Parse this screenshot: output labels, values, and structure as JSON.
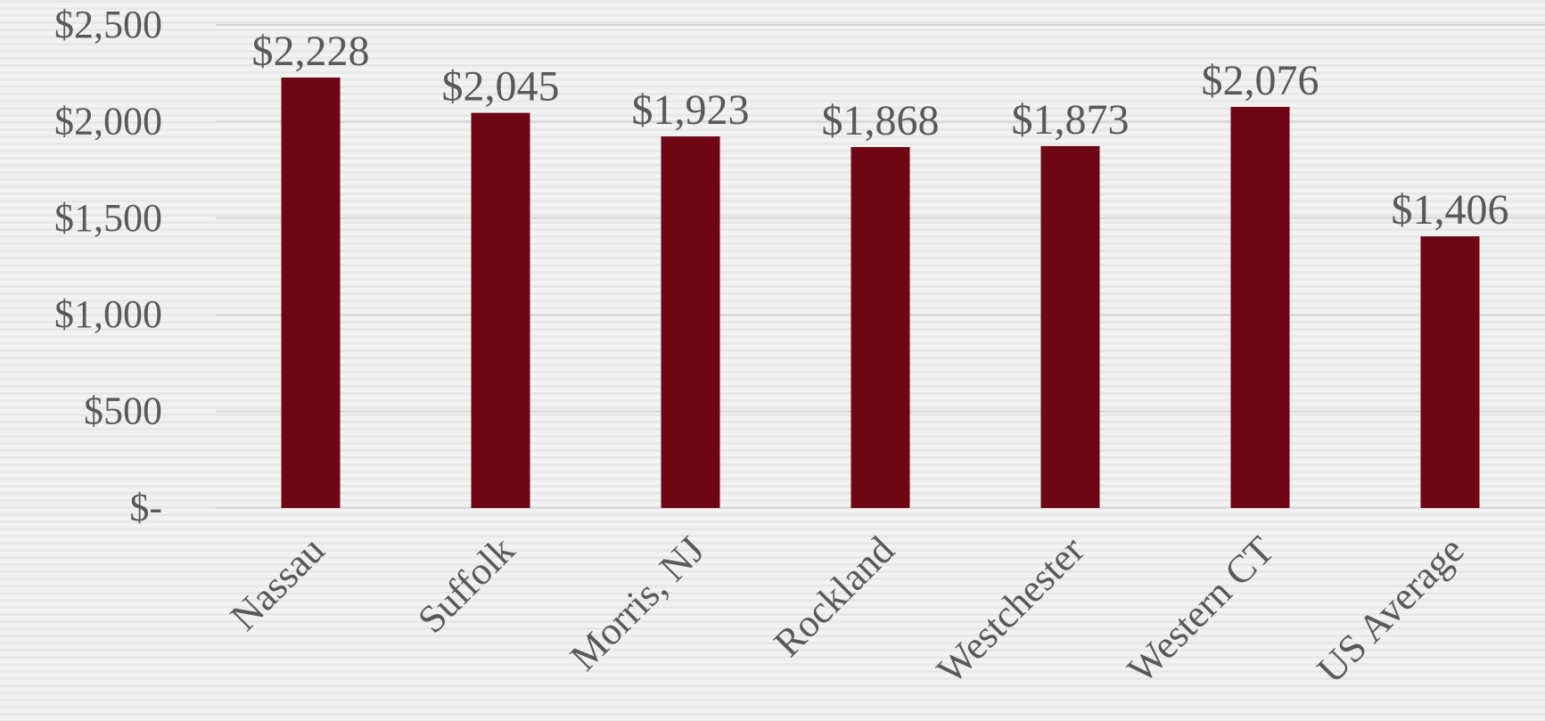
{
  "chart_data": {
    "type": "bar",
    "categories": [
      "Nassau",
      "Suffolk",
      "Morris, NJ",
      "Rockland",
      "Westchester",
      "Western CT",
      "US Average"
    ],
    "values": [
      2228,
      2045,
      1923,
      1868,
      1873,
      2076,
      1406
    ],
    "value_labels": [
      "$2,228",
      "$2,045",
      "$1,923",
      "$1,868",
      "$1,873",
      "$2,076",
      "$1,406"
    ],
    "color": "#6e0614",
    "ylim": [
      0,
      2500
    ],
    "yticks": [
      {
        "value": 0,
        "label": "$-"
      },
      {
        "value": 500,
        "label": "$500"
      },
      {
        "value": 1000,
        "label": "$1,000"
      },
      {
        "value": 1500,
        "label": "$1,500"
      },
      {
        "value": 2000,
        "label": "$2,000"
      },
      {
        "value": 2500,
        "label": "$2,500"
      }
    ],
    "grid": true
  }
}
